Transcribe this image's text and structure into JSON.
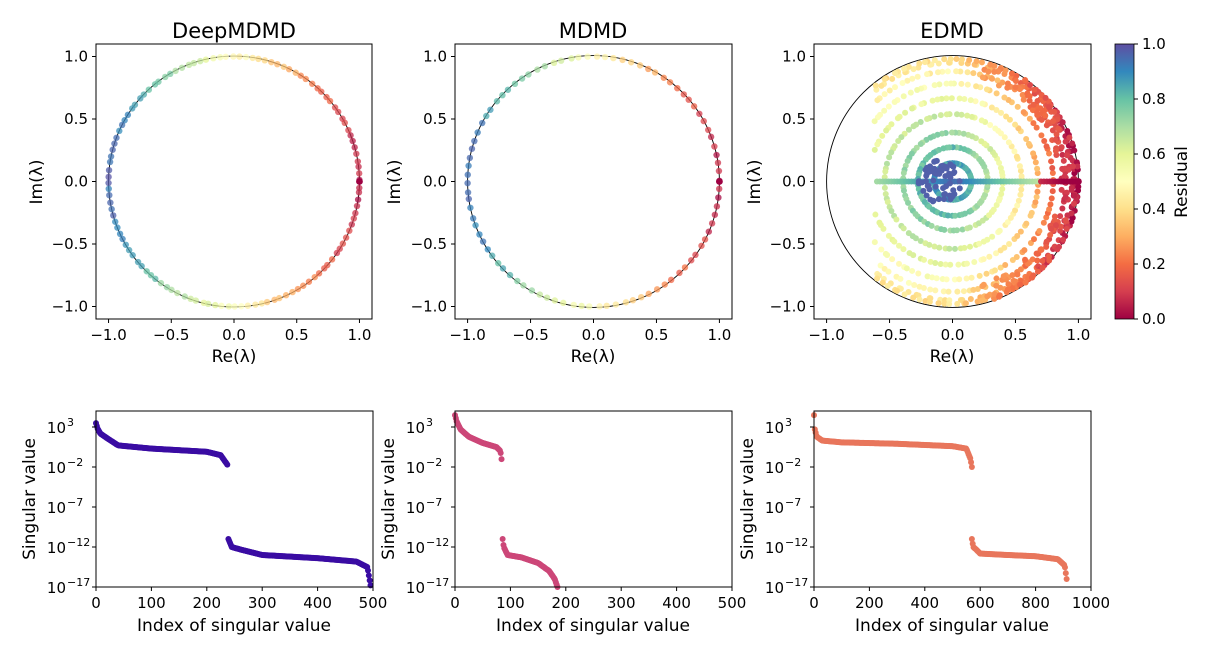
{
  "colorbar": {
    "label": "Residual",
    "ticks": [
      "0.0",
      "0.2",
      "0.4",
      "0.6",
      "0.8",
      "1.0"
    ],
    "colormap": "Spectral",
    "range": [
      0,
      1
    ]
  },
  "chart_data": [
    {
      "type": "scatter",
      "title": "DeepMDMD",
      "xlabel": "Re(λ)",
      "ylabel": "Im(λ)",
      "xlim": [
        -1.1,
        1.1
      ],
      "ylim": [
        -1.1,
        1.1
      ],
      "xticks": [
        "−1.0",
        "−0.5",
        "0.0",
        "0.5",
        "1.0"
      ],
      "yticks": [
        "−1.0",
        "−0.5",
        "0.0",
        "0.5",
        "1.0"
      ],
      "unit_circle": true,
      "eigenvalues": {
        "distribution": "on unit circle",
        "count": 120,
        "residual_trend": "low near Re=1, high near Re=-1"
      }
    },
    {
      "type": "scatter",
      "title": "MDMD",
      "xlabel": "Re(λ)",
      "ylabel": "Im(λ)",
      "xlim": [
        -1.1,
        1.1
      ],
      "ylim": [
        -1.1,
        1.1
      ],
      "xticks": [
        "−1.0",
        "−0.5",
        "0.0",
        "0.5",
        "1.0"
      ],
      "yticks": [
        "−1.0",
        "−0.5",
        "0.0",
        "0.5",
        "1.0"
      ],
      "unit_circle": true,
      "eigenvalues": {
        "distribution": "on unit circle",
        "count": 90,
        "residual_trend": "low near Re=1, high near Re=-1"
      }
    },
    {
      "type": "scatter",
      "title": "EDMD",
      "xlabel": "Re(λ)",
      "ylabel": "Im(λ)",
      "xlim": [
        -1.1,
        1.1
      ],
      "ylim": [
        -1.1,
        1.1
      ],
      "xticks": [
        "−1.0",
        "−0.5",
        "0.0",
        "0.5",
        "1.0"
      ],
      "yticks": [
        "−1.0",
        "−0.5",
        "0.0",
        "0.5",
        "1.0"
      ],
      "unit_circle": true,
      "eigenvalues": {
        "distribution": "inside unit disk, concentric rings and center cluster",
        "count": 700,
        "residual_trend": "low near outer edge Re>0, high near center"
      }
    },
    {
      "type": "scatter",
      "log_y": true,
      "xlabel": "Index of singular value",
      "ylabel": "Singular value",
      "xlim": [
        0,
        500
      ],
      "ylim": [
        1e-17,
        100000.0
      ],
      "xticks": [
        "0",
        "100",
        "200",
        "300",
        "400",
        "500"
      ],
      "yticks": [
        "10",
        "10",
        "10",
        "10",
        "10"
      ],
      "ytick_exponents": [
        "3",
        "−2",
        "−7",
        "−12",
        "−17"
      ],
      "color": "#3a0ca3",
      "segments": [
        {
          "x": [
            0,
            3,
            8,
            20,
            40,
            100,
            200,
            225,
            237
          ],
          "y": [
            3000,
            600,
            150,
            40,
            5,
            2,
            0.8,
            0.3,
            0.02
          ]
        },
        {
          "x": [
            239,
            245,
            260,
            300,
            400,
            470,
            490,
            496
          ],
          "y": [
            1e-11,
            1e-12,
            5e-13,
            1e-13,
            4e-14,
            1.5e-14,
            3e-15,
            1e-17
          ]
        }
      ]
    },
    {
      "type": "scatter",
      "log_y": true,
      "xlabel": "Index of singular value",
      "ylabel": "Singular value",
      "xlim": [
        0,
        500
      ],
      "ylim": [
        1e-17,
        100000.0
      ],
      "xticks": [
        "0",
        "100",
        "200",
        "300",
        "400",
        "500"
      ],
      "yticks": [
        "10",
        "10",
        "10",
        "10",
        "10"
      ],
      "ytick_exponents": [
        "3",
        "−2",
        "−7",
        "−12",
        "−17"
      ],
      "color": "#cc4778",
      "segments": [
        {
          "x": [
            0,
            3,
            10,
            25,
            50,
            75,
            82,
            85
          ],
          "y": [
            30000,
            5000,
            500,
            60,
            10,
            3,
            1,
            0.03
          ]
        },
        {
          "x": [
            86,
            88,
            95,
            120,
            150,
            170,
            180,
            185
          ],
          "y": [
            1e-11,
            1e-12,
            1e-13,
            5e-14,
            1e-14,
            1e-15,
            1e-16,
            1e-17
          ]
        }
      ]
    },
    {
      "type": "scatter",
      "log_y": true,
      "xlabel": "Index of singular value",
      "ylabel": "Singular value",
      "xlim": [
        0,
        1000
      ],
      "ylim": [
        1e-17,
        100000.0
      ],
      "xticks": [
        "0",
        "200",
        "400",
        "600",
        "800",
        "1000"
      ],
      "yticks": [
        "10",
        "10",
        "10",
        "10",
        "10"
      ],
      "ytick_exponents": [
        "3",
        "−2",
        "−7",
        "−12",
        "−17"
      ],
      "color": "#e8765c",
      "segments": [
        {
          "x": [
            0,
            3,
            10,
            30,
            100,
            300,
            500,
            550,
            565,
            570
          ],
          "y": [
            30000,
            500,
            60,
            20,
            12,
            8,
            4,
            2,
            0.1,
            0.01
          ]
        },
        {
          "x": [
            570,
            575,
            585,
            600,
            700,
            800,
            880,
            905,
            912
          ],
          "y": [
            1e-11,
            1e-12,
            5e-13,
            1.5e-13,
            1e-13,
            7e-14,
            3e-14,
            5e-15,
            1e-16
          ]
        }
      ]
    }
  ]
}
